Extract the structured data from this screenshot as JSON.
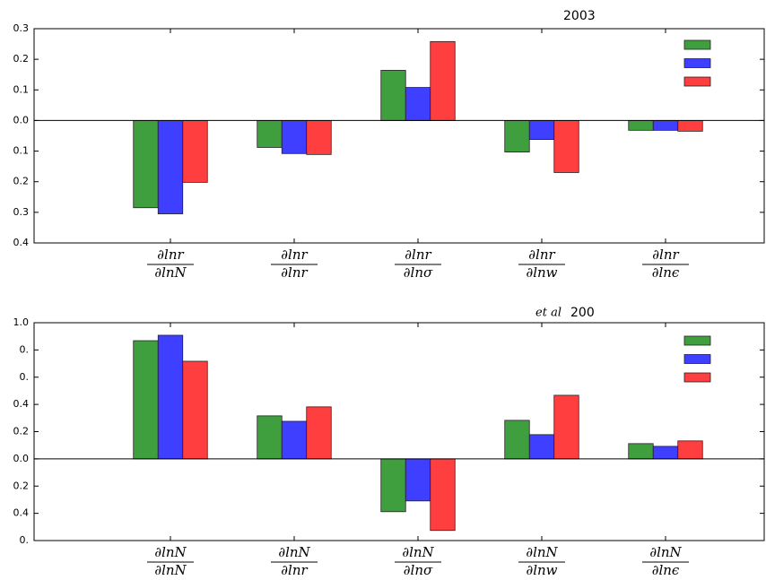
{
  "chart_data": [
    {
      "type": "bar",
      "title": "2003",
      "categories": [
        {
          "num": "∂lnr",
          "den": "∂lnN"
        },
        {
          "num": "∂lnr",
          "den": "∂lnr"
        },
        {
          "num": "∂lnr",
          "den": "∂lnσ"
        },
        {
          "num": "∂lnr",
          "den": "∂lnw"
        },
        {
          "num": "∂lnr",
          "den": "∂lnϵ"
        }
      ],
      "series": [
        {
          "color": "#3f9f3f",
          "values": [
            -0.285,
            -0.088,
            0.164,
            -0.103,
            -0.032
          ]
        },
        {
          "color": "#3f3fff",
          "values": [
            -0.305,
            -0.108,
            0.108,
            -0.062,
            -0.032
          ]
        },
        {
          "color": "#ff3f3f",
          "values": [
            -0.202,
            -0.111,
            0.258,
            -0.17,
            -0.035
          ]
        }
      ],
      "ylim": [
        -0.4,
        0.3
      ],
      "yticks": [
        {
          "value": -0.4,
          "label": "0.4"
        },
        {
          "value": -0.3,
          "label": "0.3"
        },
        {
          "value": -0.2,
          "label": "0.2"
        },
        {
          "value": -0.1,
          "label": "0.1"
        },
        {
          "value": 0,
          "label": "0.0"
        },
        0.1,
        0.2,
        0.3
      ],
      "legend": "upper right"
    },
    {
      "type": "bar",
      "title_prefix": "et al",
      "title": "200",
      "categories": [
        {
          "num": "∂lnN",
          "den": "∂lnN"
        },
        {
          "num": "∂lnN",
          "den": "∂lnr"
        },
        {
          "num": "∂lnN",
          "den": "∂lnσ"
        },
        {
          "num": "∂lnN",
          "den": "∂lnw"
        },
        {
          "num": "∂lnN",
          "den": "∂lnϵ"
        }
      ],
      "series": [
        {
          "color": "#3f9f3f",
          "values": [
            0.868,
            0.316,
            -0.388,
            0.283,
            0.112
          ]
        },
        {
          "color": "#3f3fff",
          "values": [
            0.908,
            0.276,
            -0.309,
            0.178,
            0.092
          ]
        },
        {
          "color": "#ff3f3f",
          "values": [
            0.717,
            0.382,
            -0.526,
            0.467,
            0.132
          ]
        }
      ],
      "ylim": [
        -0.6,
        1.0
      ],
      "yticks": [
        {
          "value": -0.6,
          "label": "0."
        },
        {
          "value": -0.4,
          "label": "0.4"
        },
        {
          "value": -0.2,
          "label": "0.2"
        },
        {
          "value": 0,
          "label": "0.0"
        },
        0.2,
        0.4,
        {
          "value": 0.6,
          "label": "0."
        },
        {
          "value": 0.8,
          "label": "0."
        },
        {
          "value": 1.0,
          "label": "1.0"
        }
      ],
      "legend": "upper right"
    }
  ]
}
